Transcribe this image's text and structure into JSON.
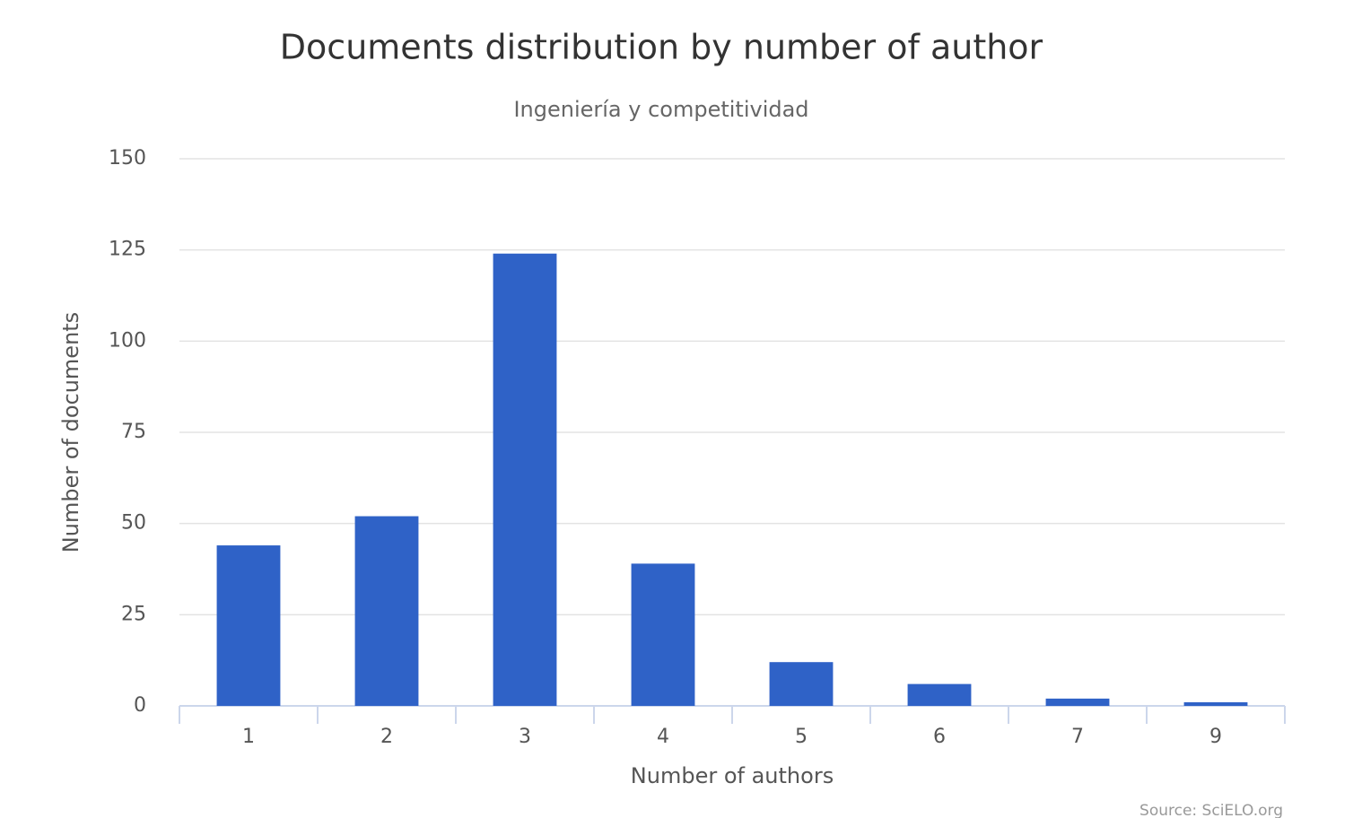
{
  "chart_data": {
    "type": "bar",
    "title": "Documents distribution by number of author",
    "subtitle": "Ingeniería y competitividad",
    "x_label": "Number of authors",
    "y_label": "Number of documents",
    "credit": "Source: SciELO.org",
    "categories": [
      "1",
      "2",
      "3",
      "4",
      "5",
      "6",
      "7",
      "9"
    ],
    "values": [
      44,
      52,
      124,
      39,
      12,
      6,
      2,
      1
    ],
    "color": "#2f62c7",
    "ylim": [
      0,
      150
    ],
    "yticks": [
      0,
      25,
      50,
      75,
      100,
      125,
      150
    ],
    "grid": true
  }
}
